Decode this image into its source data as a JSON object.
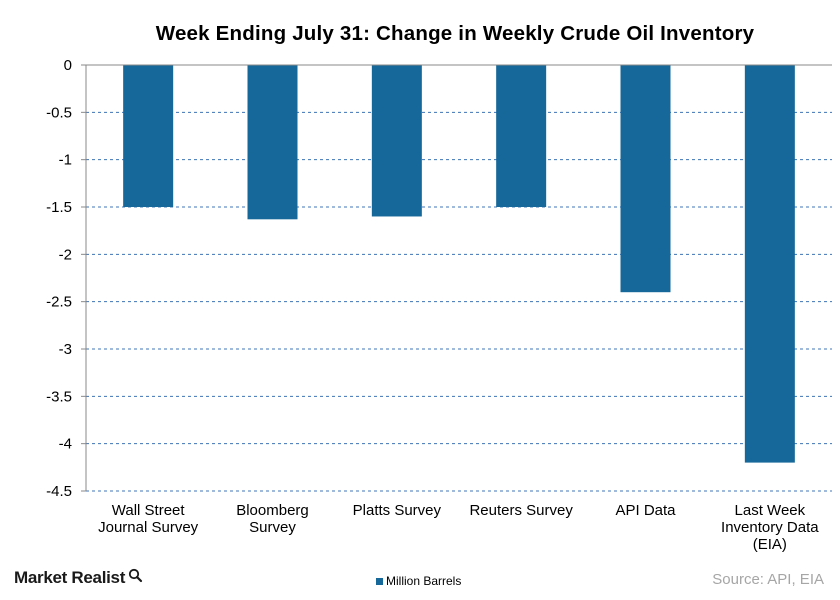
{
  "chart_data": {
    "type": "bar",
    "title": "Week Ending July 31: Change in Weekly Crude Oil Inventory",
    "categories": [
      [
        "Wall Street",
        "Journal Survey"
      ],
      [
        "Bloomberg",
        "Survey"
      ],
      [
        "Platts Survey"
      ],
      [
        "Reuters Survey"
      ],
      [
        "API Data"
      ],
      [
        "Last Week",
        "Inventory Data",
        "(EIA)"
      ]
    ],
    "series": [
      {
        "name": "Million Barrels",
        "values": [
          -1.5,
          -1.63,
          -1.6,
          -1.5,
          -2.4,
          -4.2
        ]
      }
    ],
    "yticks": [
      "0",
      "-0.5",
      "-1",
      "-1.5",
      "-2",
      "-2.5",
      "-3",
      "-3.5",
      "-4",
      "-4.5"
    ],
    "ylim": [
      -4.5,
      0
    ],
    "grid": "dashed horizontal",
    "legend_position": "bottom",
    "bar_color": "#16679a"
  },
  "footer": {
    "brand": "Market Realist",
    "legend_label": "Million Barrels",
    "source": "Source: API, EIA"
  },
  "icons": {
    "brand_icon": "magnifier-icon"
  }
}
